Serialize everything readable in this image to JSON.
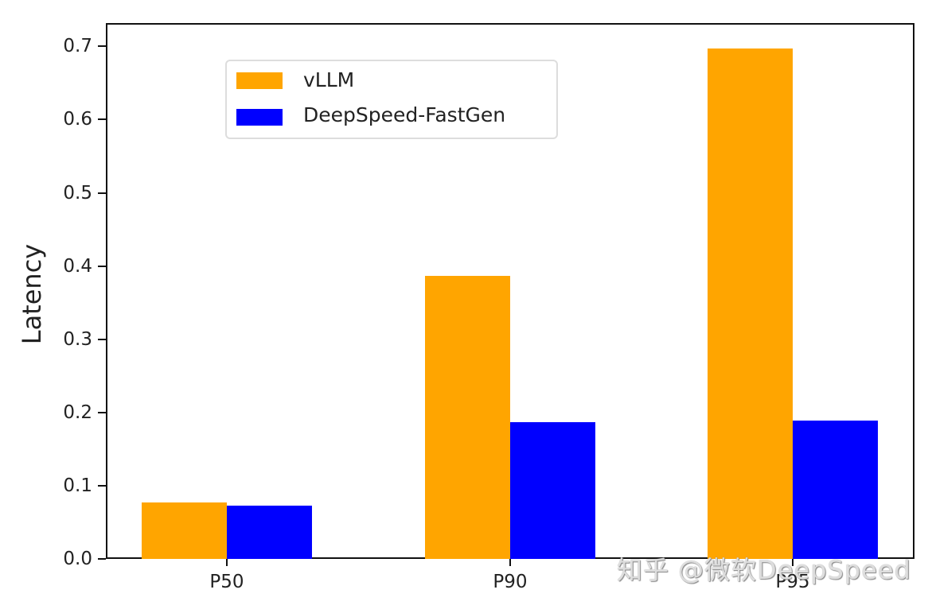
{
  "chart_data": {
    "type": "bar",
    "title": "",
    "xlabel": "",
    "ylabel": "Latency",
    "categories": [
      "P50",
      "P90",
      "P95"
    ],
    "series": [
      {
        "name": "vLLM",
        "color": "#FFA500",
        "values": [
          0.077,
          0.386,
          0.697
        ]
      },
      {
        "name": "DeepSpeed-FastGen",
        "color": "#0000FF",
        "values": [
          0.073,
          0.187,
          0.189
        ]
      }
    ],
    "ylim": [
      0.0,
      0.732
    ],
    "yticks": [
      "0.0",
      "0.1",
      "0.2",
      "0.3",
      "0.4",
      "0.5",
      "0.6",
      "0.7"
    ],
    "grid": false,
    "legend_position": "upper left"
  },
  "watermark": "知乎 @微软DeepSpeed"
}
